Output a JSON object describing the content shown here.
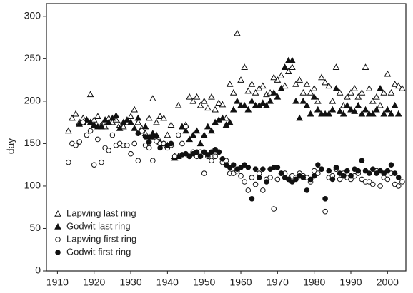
{
  "chart_data": {
    "type": "scatter",
    "y_label": "day",
    "xlim": [
      1907,
      2005
    ],
    "ylim": [
      0,
      315
    ],
    "xticks": [
      1910,
      1920,
      1930,
      1940,
      1950,
      1960,
      1970,
      1980,
      1990,
      2000
    ],
    "yticks": [
      0,
      50,
      100,
      150,
      200,
      250,
      300
    ],
    "legend": "lower left",
    "series": [
      {
        "name": "Lapwing last ring",
        "color": "#111111",
        "marker": "triangle-open",
        "x": [
          1913,
          1914,
          1915,
          1916,
          1917,
          1918,
          1919,
          1920,
          1921,
          1922,
          1923,
          1924,
          1925,
          1926,
          1927,
          1928,
          1929,
          1930,
          1931,
          1932,
          1933,
          1934,
          1935,
          1936,
          1937,
          1938,
          1939,
          1940,
          1941,
          1942,
          1943,
          1944,
          1945,
          1946,
          1947,
          1948,
          1949,
          1950,
          1951,
          1952,
          1953,
          1954,
          1955,
          1956,
          1957,
          1958,
          1959,
          1960,
          1961,
          1962,
          1963,
          1964,
          1965,
          1966,
          1967,
          1968,
          1969,
          1970,
          1971,
          1972,
          1973,
          1974,
          1975,
          1976,
          1977,
          1978,
          1979,
          1980,
          1981,
          1982,
          1983,
          1984,
          1985,
          1986,
          1987,
          1988,
          1989,
          1990,
          1991,
          1992,
          1993,
          1994,
          1995,
          1996,
          1997,
          1998,
          1999,
          2000,
          2001,
          2002,
          2003,
          2004
        ],
        "values": [
          165,
          180,
          185,
          175,
          180,
          178,
          208,
          178,
          182,
          172,
          170,
          180,
          175,
          178,
          172,
          170,
          175,
          182,
          190,
          175,
          168,
          162,
          180,
          203,
          175,
          182,
          180,
          160,
          172,
          135,
          195,
          170,
          172,
          205,
          200,
          205,
          195,
          200,
          192,
          205,
          190,
          198,
          196,
          180,
          220,
          210,
          280,
          225,
          240,
          212,
          220,
          210,
          215,
          218,
          208,
          210,
          228,
          225,
          230,
          218,
          235,
          240,
          220,
          225,
          210,
          220,
          210,
          215,
          200,
          228,
          222,
          218,
          200,
          240,
          210,
          195,
          205,
          210,
          215,
          205,
          210,
          240,
          215,
          200,
          205,
          195,
          210,
          232,
          210,
          220,
          218,
          215
        ]
      },
      {
        "name": "Godwit last ring",
        "color": "#111111",
        "marker": "triangle-filled",
        "x": [
          1916,
          1917,
          1918,
          1919,
          1920,
          1921,
          1922,
          1923,
          1924,
          1925,
          1926,
          1927,
          1928,
          1929,
          1930,
          1931,
          1932,
          1933,
          1934,
          1935,
          1936,
          1937,
          1938,
          1939,
          1940,
          1941,
          1942,
          1943,
          1944,
          1945,
          1946,
          1947,
          1948,
          1949,
          1950,
          1951,
          1952,
          1953,
          1954,
          1955,
          1956,
          1957,
          1958,
          1959,
          1960,
          1961,
          1962,
          1963,
          1964,
          1965,
          1966,
          1967,
          1968,
          1969,
          1970,
          1971,
          1972,
          1973,
          1974,
          1975,
          1976,
          1977,
          1978,
          1979,
          1980,
          1981,
          1982,
          1983,
          1984,
          1985,
          1986,
          1987,
          1988,
          1989,
          1990,
          1991,
          1992,
          1993,
          1994,
          1995,
          1996,
          1997,
          1998,
          1999,
          2000,
          2001,
          2002,
          2003
        ],
        "values": [
          173,
          175,
          178,
          175,
          172,
          170,
          170,
          178,
          175,
          180,
          183,
          168,
          175,
          178,
          175,
          168,
          180,
          165,
          170,
          158,
          162,
          160,
          152,
          150,
          148,
          150,
          133,
          135,
          170,
          165,
          155,
          160,
          165,
          150,
          160,
          170,
          165,
          175,
          178,
          180,
          172,
          175,
          190,
          200,
          195,
          195,
          190,
          200,
          195,
          195,
          198,
          195,
          200,
          210,
          205,
          215,
          240,
          248,
          248,
          200,
          180,
          200,
          195,
          185,
          205,
          190,
          185,
          185,
          185,
          190,
          215,
          188,
          185,
          195,
          190,
          188,
          195,
          185,
          190,
          185,
          185,
          190,
          215,
          185,
          190,
          185,
          195,
          185
        ]
      },
      {
        "name": "Lapwing first ring",
        "color": "#111111",
        "marker": "circle-open",
        "x": [
          1913,
          1914,
          1915,
          1916,
          1917,
          1918,
          1919,
          1920,
          1921,
          1922,
          1923,
          1924,
          1925,
          1926,
          1927,
          1928,
          1929,
          1930,
          1931,
          1932,
          1933,
          1934,
          1935,
          1936,
          1937,
          1938,
          1939,
          1940,
          1941,
          1942,
          1943,
          1944,
          1945,
          1946,
          1947,
          1948,
          1949,
          1950,
          1951,
          1952,
          1953,
          1954,
          1955,
          1956,
          1957,
          1958,
          1959,
          1960,
          1961,
          1962,
          1963,
          1964,
          1965,
          1966,
          1967,
          1968,
          1969,
          1970,
          1971,
          1972,
          1973,
          1974,
          1975,
          1976,
          1977,
          1978,
          1979,
          1980,
          1981,
          1982,
          1983,
          1984,
          1985,
          1986,
          1987,
          1988,
          1989,
          1990,
          1991,
          1992,
          1993,
          1994,
          1995,
          1996,
          1997,
          1998,
          1999,
          2000,
          2001,
          2002,
          2003,
          2004
        ],
        "values": [
          128,
          150,
          148,
          152,
          175,
          160,
          165,
          125,
          155,
          128,
          145,
          142,
          160,
          148,
          150,
          148,
          148,
          138,
          150,
          130,
          165,
          148,
          145,
          130,
          153,
          150,
          150,
          145,
          148,
          135,
          160,
          150,
          170,
          135,
          140,
          135,
          140,
          115,
          135,
          130,
          135,
          140,
          128,
          130,
          115,
          115,
          118,
          112,
          105,
          95,
          110,
          102,
          115,
          95,
          108,
          110,
          73,
          108,
          115,
          115,
          108,
          112,
          110,
          115,
          112,
          110,
          105,
          118,
          115,
          120,
          70,
          110,
          112,
          120,
          108,
          115,
          110,
          108,
          112,
          115,
          108,
          105,
          105,
          102,
          118,
          100,
          110,
          108,
          115,
          102,
          100,
          105
        ]
      },
      {
        "name": "Godwit first ring",
        "color": "#111111",
        "marker": "circle-filled",
        "x": [
          1932,
          1934,
          1935,
          1936,
          1938,
          1940,
          1941,
          1944,
          1945,
          1946,
          1947,
          1948,
          1949,
          1950,
          1951,
          1952,
          1953,
          1954,
          1955,
          1956,
          1957,
          1958,
          1959,
          1960,
          1961,
          1962,
          1963,
          1964,
          1965,
          1966,
          1967,
          1968,
          1969,
          1970,
          1971,
          1972,
          1973,
          1974,
          1975,
          1976,
          1977,
          1978,
          1979,
          1980,
          1981,
          1982,
          1983,
          1984,
          1985,
          1986,
          1987,
          1988,
          1989,
          1990,
          1991,
          1992,
          1993,
          1994,
          1995,
          1996,
          1997,
          1998,
          1999,
          2000,
          2001,
          2002,
          2003
        ],
        "values": [
          162,
          158,
          152,
          158,
          145,
          148,
          150,
          137,
          138,
          135,
          138,
          140,
          135,
          140,
          137,
          140,
          143,
          140,
          132,
          125,
          122,
          125,
          120,
          122,
          125,
          122,
          85,
          120,
          110,
          120,
          105,
          120,
          122,
          122,
          115,
          110,
          108,
          105,
          108,
          112,
          110,
          95,
          108,
          112,
          125,
          120,
          85,
          118,
          108,
          122,
          115,
          112,
          118,
          112,
          120,
          118,
          130,
          118,
          115,
          120,
          115,
          118,
          115,
          118,
          125,
          115,
          110
        ]
      }
    ]
  }
}
